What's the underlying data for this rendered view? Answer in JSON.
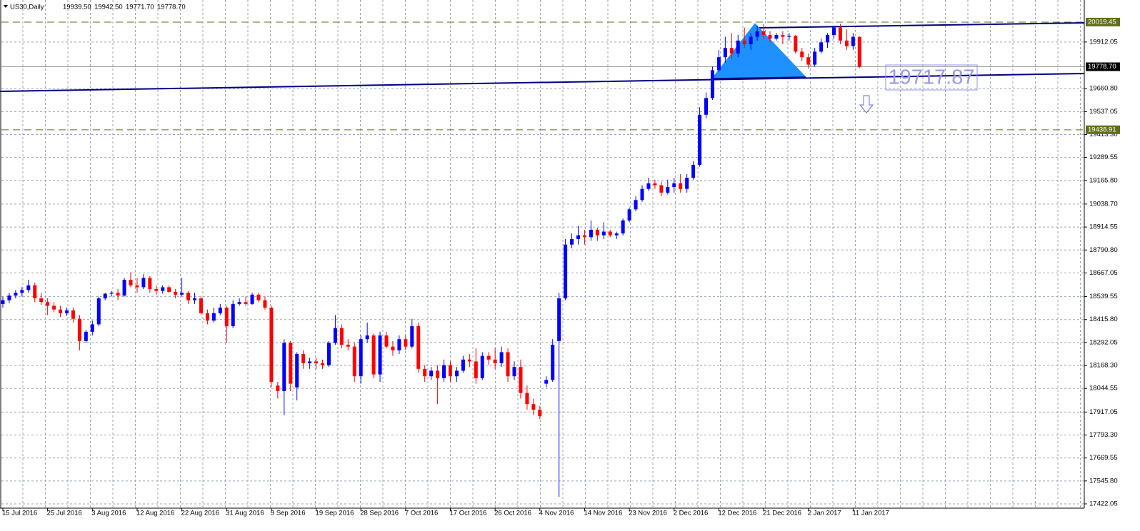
{
  "chart_data": {
    "type": "candlestick",
    "title": "US30,Daily",
    "last_bar_labels": [
      "19939.50",
      "19942.50",
      "19771.70",
      "19778.70"
    ],
    "up_color": "#0000ff",
    "down_color": "#ff0000",
    "grid": true,
    "ylim": [
      17399,
      20138.5
    ],
    "yticks": [
      19912.05,
      {
        "value": 19660.8,
        "label": "19660.80"
      },
      19537.05,
      {
        "value": 19413.3,
        "label": "19413.30"
      },
      19289.55,
      {
        "value": 19165.8,
        "label": "19165.80"
      },
      {
        "value": 19038.7,
        "label": "19038.70"
      },
      18914.55,
      {
        "value": 18790.8,
        "label": "18790.80"
      },
      18667.05,
      18539.55,
      {
        "value": 18415.8,
        "label": "18415.80"
      },
      18292.05,
      {
        "value": 18168.3,
        "label": "18168.30"
      },
      18044.55,
      17917.05,
      {
        "value": 17793.3,
        "label": "17793.30"
      },
      17669.55,
      {
        "value": 17545.8,
        "label": "17545.80"
      },
      17422.05
    ],
    "levels": [
      {
        "value": 20019.45,
        "color": "#5f6f1f",
        "style": "dashed"
      },
      {
        "value": 19438.91,
        "color": "#5f6f1f",
        "style": "dashed"
      },
      {
        "value": 19778.7,
        "label": "19778.70",
        "color": "#000000",
        "style": "solid"
      }
    ],
    "annotation_text": "19717.87",
    "categories": [
      "15 Jul 2016",
      null,
      null,
      null,
      null,
      null,
      null,
      "25 Jul 2016",
      null,
      null,
      null,
      null,
      null,
      null,
      "3 Aug 2016",
      null,
      null,
      null,
      null,
      null,
      null,
      "12 Aug 2016",
      null,
      null,
      null,
      null,
      null,
      null,
      "22 Aug 2016",
      null,
      null,
      null,
      null,
      null,
      null,
      "31 Aug 2016",
      null,
      null,
      null,
      null,
      null,
      null,
      "9 Sep 2016",
      null,
      null,
      null,
      null,
      null,
      null,
      "19 Sep 2016",
      null,
      null,
      null,
      null,
      null,
      null,
      "28 Sep 2016",
      null,
      null,
      null,
      null,
      null,
      null,
      "7 Oct 2016",
      null,
      null,
      null,
      null,
      null,
      null,
      "17 Oct 2016",
      null,
      null,
      null,
      null,
      null,
      null,
      "26 Oct 2016",
      null,
      null,
      null,
      null,
      null,
      null,
      "4 Nov 2016",
      null,
      null,
      null,
      null,
      null,
      null,
      "14 Nov 2016",
      null,
      null,
      null,
      null,
      null,
      null,
      "23 Nov 2016",
      null,
      null,
      null,
      null,
      null,
      null,
      "2 Dec 2016",
      null,
      null,
      null,
      null,
      null,
      null,
      "12 Dec 2016",
      null,
      null,
      null,
      null,
      null,
      null,
      "21 Dec 2016",
      null,
      null,
      null,
      null,
      null,
      null,
      "2 Jan 2017",
      null,
      null,
      null,
      null,
      null,
      null,
      "11 Jan 2017",
      null
    ],
    "ohlc": [
      [
        18500,
        18540,
        18480,
        18520
      ],
      [
        18520,
        18560,
        18505,
        18545
      ],
      [
        18545,
        18575,
        18530,
        18560
      ],
      [
        18560,
        18590,
        18540,
        18575
      ],
      [
        18575,
        18630,
        18560,
        18600
      ],
      [
        18600,
        18615,
        18510,
        18530
      ],
      [
        18530,
        18560,
        18495,
        18510
      ],
      [
        18510,
        18530,
        18440,
        18490
      ],
      [
        18490,
        18510,
        18455,
        18470
      ],
      [
        18470,
        18490,
        18430,
        18450
      ],
      [
        18450,
        18480,
        18435,
        18465
      ],
      [
        18465,
        18480,
        18400,
        18420
      ],
      [
        18420,
        18440,
        18250,
        18300
      ],
      [
        18300,
        18360,
        18290,
        18350
      ],
      [
        18350,
        18410,
        18330,
        18390
      ],
      [
        18390,
        18540,
        18380,
        18530
      ],
      [
        18530,
        18560,
        18520,
        18555
      ],
      [
        18555,
        18570,
        18540,
        18560
      ],
      [
        18560,
        18580,
        18520,
        18545
      ],
      [
        18545,
        18640,
        18540,
        18630
      ],
      [
        18630,
        18670,
        18590,
        18600
      ],
      [
        18600,
        18640,
        18560,
        18590
      ],
      [
        18590,
        18660,
        18580,
        18640
      ],
      [
        18640,
        18650,
        18560,
        18580
      ],
      [
        18580,
        18600,
        18550,
        18570
      ],
      [
        18570,
        18600,
        18555,
        18590
      ],
      [
        18590,
        18600,
        18560,
        18565
      ],
      [
        18565,
        18580,
        18530,
        18550
      ],
      [
        18550,
        18640,
        18540,
        18560
      ],
      [
        18560,
        18570,
        18500,
        18520
      ],
      [
        18520,
        18560,
        18500,
        18530
      ],
      [
        18530,
        18540,
        18440,
        18450
      ],
      [
        18450,
        18470,
        18390,
        18410
      ],
      [
        18410,
        18480,
        18400,
        18450
      ],
      [
        18450,
        18500,
        18440,
        18480
      ],
      [
        18480,
        18490,
        18290,
        18380
      ],
      [
        18380,
        18520,
        18370,
        18500
      ],
      [
        18500,
        18530,
        18490,
        18510
      ],
      [
        18510,
        18540,
        18490,
        18500
      ],
      [
        18500,
        18560,
        18495,
        18550
      ],
      [
        18550,
        18560,
        18510,
        18520
      ],
      [
        18520,
        18540,
        18470,
        18480
      ],
      [
        18480,
        18490,
        18050,
        18080
      ],
      [
        18060,
        18080,
        17990,
        18030
      ],
      [
        18030,
        18310,
        17900,
        18290
      ],
      [
        18290,
        18300,
        18030,
        18070
      ],
      [
        18050,
        18240,
        17980,
        18230
      ],
      [
        18230,
        18250,
        18150,
        18180
      ],
      [
        18180,
        18210,
        18150,
        18190
      ],
      [
        18190,
        18210,
        18150,
        18180
      ],
      [
        18180,
        18200,
        18150,
        18170
      ],
      [
        18170,
        18300,
        18160,
        18290
      ],
      [
        18290,
        18440,
        18280,
        18370
      ],
      [
        18370,
        18390,
        18260,
        18280
      ],
      [
        18280,
        18310,
        18250,
        18270
      ],
      [
        18270,
        18290,
        18080,
        18110
      ],
      [
        18110,
        18330,
        18070,
        18310
      ],
      [
        18310,
        18400,
        18290,
        18330
      ],
      [
        18330,
        18340,
        18100,
        18120
      ],
      [
        18120,
        18350,
        18080,
        18330
      ],
      [
        18330,
        18350,
        18260,
        18270
      ],
      [
        18270,
        18300,
        18220,
        18250
      ],
      [
        18250,
        18330,
        18230,
        18310
      ],
      [
        18310,
        18330,
        18250,
        18270
      ],
      [
        18270,
        18420,
        18260,
        18380
      ],
      [
        18380,
        18400,
        18130,
        18150
      ],
      [
        18150,
        18170,
        18080,
        18110
      ],
      [
        18110,
        18160,
        18090,
        18140
      ],
      [
        18140,
        18170,
        17960,
        18100
      ],
      [
        18100,
        18200,
        18080,
        18170
      ],
      [
        18170,
        18190,
        18080,
        18110
      ],
      [
        18110,
        18160,
        18080,
        18140
      ],
      [
        18140,
        18220,
        18130,
        18200
      ],
      [
        18200,
        18230,
        18160,
        18190
      ],
      [
        18190,
        18260,
        18070,
        18100
      ],
      [
        18100,
        18240,
        18090,
        18220
      ],
      [
        18220,
        18240,
        18170,
        18200
      ],
      [
        18200,
        18260,
        18150,
        18180
      ],
      [
        18180,
        18270,
        18160,
        18240
      ],
      [
        18240,
        18260,
        18080,
        18110
      ],
      [
        18110,
        18190,
        18090,
        18160
      ],
      [
        18160,
        18200,
        17990,
        18020
      ],
      [
        18020,
        18060,
        17930,
        17960
      ],
      [
        17960,
        17990,
        17900,
        17930
      ],
      [
        17930,
        17950,
        17880,
        17895
      ],
      [
        18070,
        18110,
        18050,
        18090
      ],
      [
        18090,
        18310,
        18080,
        18280
      ],
      [
        18300,
        18560,
        17460,
        18530
      ],
      [
        18530,
        18850,
        18520,
        18820
      ],
      [
        18820,
        18880,
        18800,
        18850
      ],
      [
        18850,
        18920,
        18820,
        18870
      ],
      [
        18870,
        18900,
        18820,
        18860
      ],
      [
        18860,
        18950,
        18840,
        18900
      ],
      [
        18900,
        18910,
        18840,
        18870
      ],
      [
        18870,
        18940,
        18850,
        18890
      ],
      [
        18890,
        18900,
        18860,
        18870
      ],
      [
        18870,
        18890,
        18850,
        18880
      ],
      [
        18880,
        18960,
        18870,
        18950
      ],
      [
        18950,
        19020,
        18940,
        19010
      ],
      [
        19010,
        19080,
        19000,
        19060
      ],
      [
        19060,
        19140,
        19050,
        19120
      ],
      [
        19120,
        19180,
        19110,
        19150
      ],
      [
        19150,
        19170,
        19120,
        19140
      ],
      [
        19140,
        19160,
        19080,
        19100
      ],
      [
        19100,
        19170,
        19090,
        19130
      ],
      [
        19130,
        19180,
        19100,
        19150
      ],
      [
        19150,
        19200,
        19100,
        19120
      ],
      [
        19120,
        19200,
        19100,
        19180
      ],
      [
        19180,
        19270,
        19170,
        19250
      ],
      [
        19250,
        19560,
        19240,
        19520
      ],
      [
        19520,
        19640,
        19500,
        19610
      ],
      [
        19610,
        19780,
        19600,
        19760
      ],
      [
        19760,
        19870,
        19750,
        19830
      ],
      [
        19830,
        19940,
        19800,
        19880
      ],
      [
        19880,
        19960,
        19820,
        19850
      ],
      [
        19850,
        19950,
        19830,
        19920
      ],
      [
        19920,
        19990,
        19880,
        19900
      ],
      [
        19900,
        19960,
        19870,
        19940
      ],
      [
        19940,
        20000,
        19920,
        19970
      ],
      [
        19970,
        20010,
        19930,
        19950
      ],
      [
        19950,
        19970,
        19910,
        19930
      ],
      [
        19930,
        19960,
        19920,
        19950
      ],
      [
        19950,
        19970,
        19900,
        19940
      ],
      [
        19940,
        19960,
        19920,
        19945
      ],
      [
        19945,
        19950,
        19850,
        19860
      ],
      [
        19860,
        19880,
        19810,
        19830
      ],
      [
        19830,
        19850,
        19770,
        19790
      ],
      [
        19790,
        19880,
        19780,
        19860
      ],
      [
        19860,
        19930,
        19850,
        19910
      ],
      [
        19910,
        19960,
        19880,
        19950
      ],
      [
        19950,
        20000,
        19930,
        19990
      ],
      [
        19990,
        20010,
        19900,
        19920
      ],
      [
        19920,
        19980,
        19870,
        19890
      ],
      [
        19890,
        19960,
        19870,
        19940
      ],
      [
        19939.5,
        19942.5,
        19771.7,
        19778.7
      ]
    ]
  }
}
